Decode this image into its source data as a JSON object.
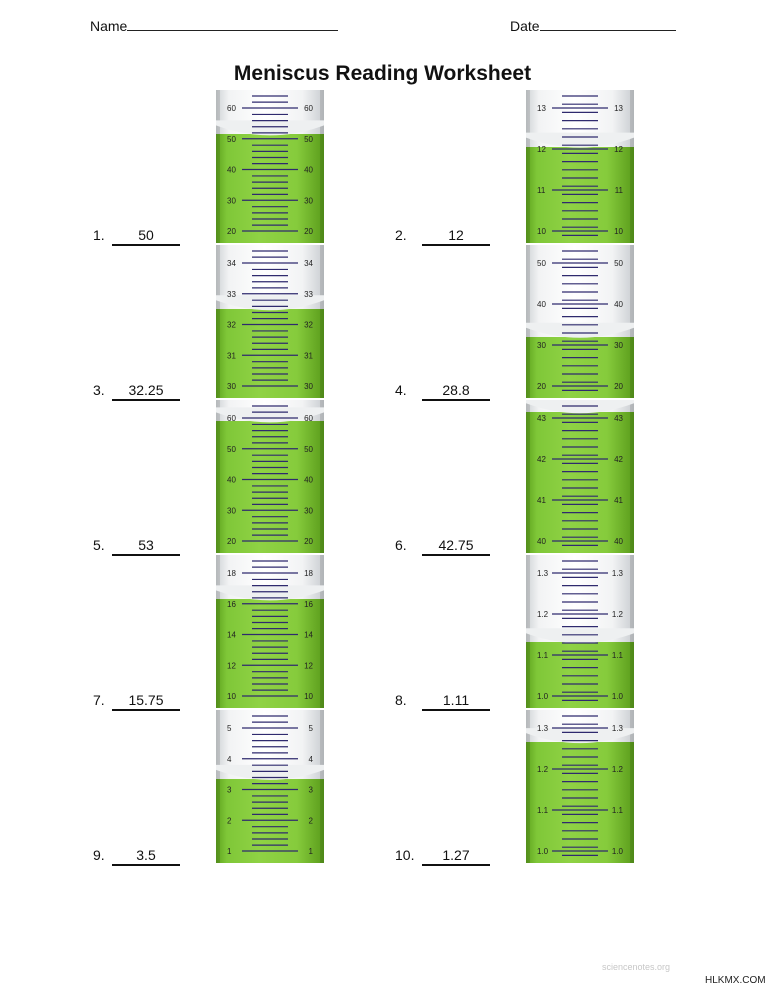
{
  "header": {
    "name_label": "Name",
    "date_label": "Date"
  },
  "title": "Meniscus Reading Worksheet",
  "footer_text": "sciencenotes.org",
  "watermark": "HLKMX.COM",
  "problems": [
    {
      "number": "1.",
      "answer": "50",
      "ticks": [
        "60",
        "50",
        "40",
        "30",
        "20"
      ],
      "level": 0.71
    },
    {
      "number": "2.",
      "answer": "12",
      "ticks": [
        "13",
        "12",
        "11",
        "10"
      ],
      "level": 0.63
    },
    {
      "number": "3.",
      "answer": "32.25",
      "ticks": [
        "34",
        "33",
        "32",
        "31",
        "30"
      ],
      "level": 0.58
    },
    {
      "number": "4.",
      "answer": "28.8",
      "ticks": [
        "50",
        "40",
        "30",
        "20"
      ],
      "level": 0.4
    },
    {
      "number": "5.",
      "answer": "53",
      "ticks": [
        "60",
        "50",
        "40",
        "30",
        "20"
      ],
      "level": 0.86
    },
    {
      "number": "6.",
      "answer": "42.75",
      "ticks": [
        "43",
        "42",
        "41",
        "40"
      ],
      "level": 0.92
    },
    {
      "number": "7.",
      "answer": "15.75",
      "ticks": [
        "18",
        "16",
        "14",
        "12",
        "10"
      ],
      "level": 0.71
    },
    {
      "number": "8.",
      "answer": "1.11",
      "ticks": [
        "1.3",
        "1.2",
        "1.1",
        "1.0"
      ],
      "level": 0.43
    },
    {
      "number": "9.",
      "answer": "3.5",
      "ticks": [
        "5",
        "4",
        "3",
        "2",
        "1"
      ],
      "level": 0.55
    },
    {
      "number": "10.",
      "answer": "1.27",
      "ticks": [
        "1.3",
        "1.2",
        "1.1",
        "1.0"
      ],
      "level": 0.79
    }
  ]
}
